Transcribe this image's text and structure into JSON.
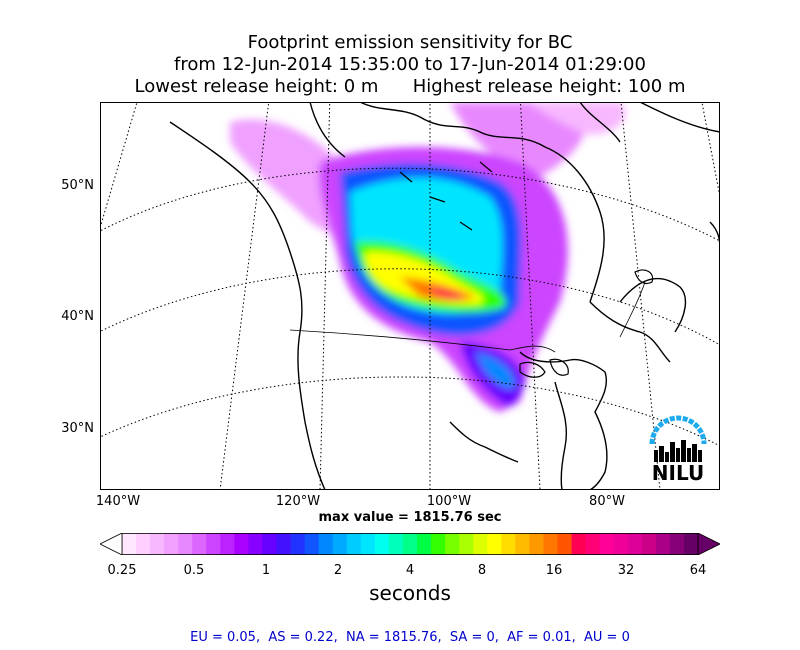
{
  "title": {
    "line1": "Footprint emission sensitivity for BC",
    "line2": "from 12-Jun-2014 15:35:00 to 17-Jun-2014 01:29:00",
    "line3": "Lowest release height: 0 m      Highest release height: 100 m"
  },
  "map": {
    "lat_labels": [
      "50°N",
      "40°N",
      "30°N"
    ],
    "lon_labels": [
      "140°W",
      "120°W",
      "100°W",
      "80°W"
    ],
    "land_color": "#ffffff",
    "coastline_color": "#000000",
    "gridline_style": "dotted"
  },
  "max_value": "max value = 1815.76 sec",
  "colorbar": {
    "ticks": [
      "0.25",
      "0.5",
      "1",
      "2",
      "4",
      "8",
      "16",
      "32",
      "64"
    ],
    "label": "seconds",
    "colors": [
      "#ffe8ff",
      "#ffd0ff",
      "#f8b8ff",
      "#f0a0ff",
      "#e888ff",
      "#dd66ff",
      "#cc44ff",
      "#bb22ff",
      "#aa00ff",
      "#8800ff",
      "#6600ff",
      "#4411ff",
      "#2233ff",
      "#1155ff",
      "#0088ff",
      "#00aaff",
      "#00ccff",
      "#00e5ff",
      "#00ffee",
      "#00ffbb",
      "#00ff88",
      "#00ff44",
      "#33ff00",
      "#77ff00",
      "#aaff00",
      "#ddff00",
      "#ffff00",
      "#ffdd00",
      "#ffbb00",
      "#ff9900",
      "#ff7700",
      "#ff5500",
      "#ff0055",
      "#ff0077",
      "#ff0099",
      "#ee0099",
      "#dd0099",
      "#cc0088",
      "#aa0088",
      "#880077",
      "#660066"
    ]
  },
  "footer": "EU = 0.05,  AS = 0.22,  NA = 1815.76,  SA = 0,  AF = 0.01,  AU = 0",
  "logo": {
    "text": "NILU",
    "arc_color": "#1eaaee"
  }
}
